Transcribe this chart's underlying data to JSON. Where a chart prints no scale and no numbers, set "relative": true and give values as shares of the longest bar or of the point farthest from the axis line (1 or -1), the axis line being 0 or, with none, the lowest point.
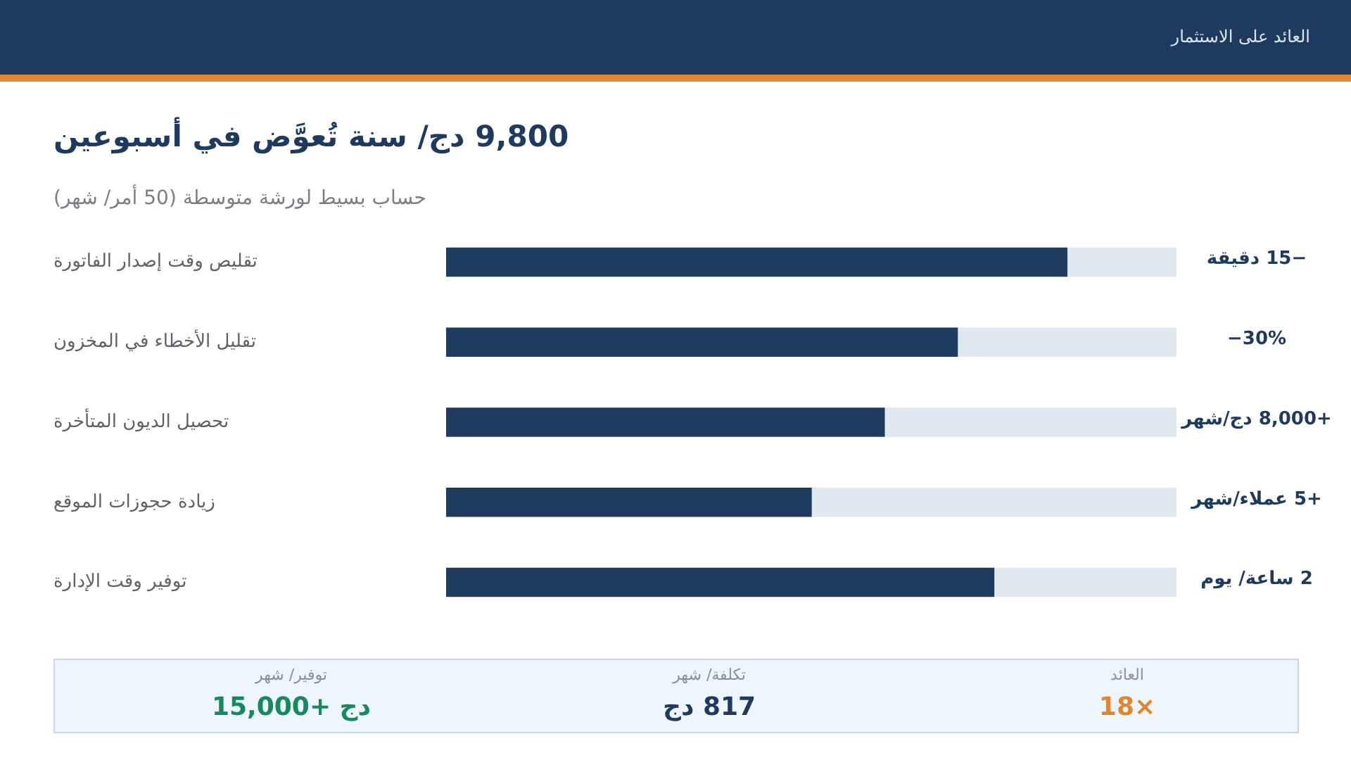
{
  "chart_data": [
    {
      "type": "bar",
      "orientation": "horizontal",
      "stacked": true,
      "relative": true,
      "title": "9,800 دج/ سنة تُعوَّض في أسبوعين",
      "subtitle": "حساب بسيط لورشة متوسطة (50 أمر/ شهر)",
      "annotations": [
        "العائد على الاستثمار",
        "−15 دقيقة",
        "−30%",
        "+8,000 دج/شهر",
        "+5 عملاء/شهر",
        "2 ساعة/ يوم"
      ],
      "categories": [
        "تقليص وقت إصدار الفاتورة",
        "تقليل الأخطاء في المخزون",
        "تحصيل الديون المتأخرة",
        "زيادة حجوزات الموقع",
        "توفير وقت الإدارة"
      ],
      "series": [
        {
          "color": "#1f3a5f",
          "values": [
            0.85,
            0.7,
            0.6,
            0.5,
            0.75
          ]
        },
        {
          "color": "#e2e8f0",
          "values": [
            0.15,
            0.3,
            0.4,
            0.5,
            0.25
          ]
        }
      ]
    },
    {
      "type": "other",
      "annotations": [
        "توفير/ شهر",
        "دج +15,000",
        "تكلفة/ شهر",
        "817 دج",
        "العائد",
        "18×"
      ],
      "colors": [
        "#168a5c",
        "#1f3a5f",
        "#e0862e"
      ]
    }
  ]
}
